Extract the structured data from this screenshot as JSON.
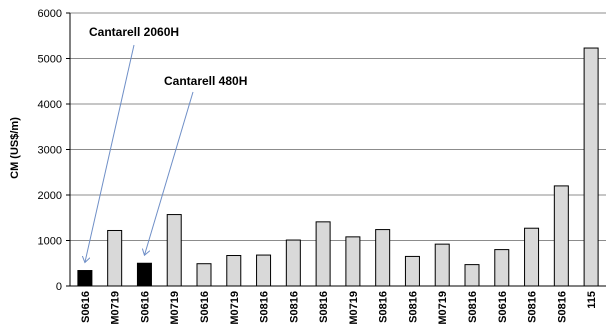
{
  "chart_data": {
    "type": "bar",
    "title": "",
    "xlabel": "",
    "ylabel": "CM (US$/m)",
    "ylim": [
      0,
      6000
    ],
    "yticks": [
      0,
      1000,
      2000,
      3000,
      4000,
      5000,
      6000
    ],
    "grid": true,
    "categories": [
      "S0616",
      "M0719",
      "S0616",
      "M0719",
      "S0616",
      "M0719",
      "S0816",
      "S0816",
      "S0816",
      "M0719",
      "S0816",
      "S0816",
      "M0719",
      "S0816",
      "S0616",
      "S0816",
      "S0816",
      "115"
    ],
    "values": [
      340,
      1220,
      500,
      1570,
      490,
      670,
      680,
      1010,
      1410,
      1080,
      1240,
      650,
      920,
      470,
      800,
      1270,
      2200,
      5230
    ],
    "bar_colors": [
      "#000000",
      "#d9d9d9",
      "#000000",
      "#d9d9d9",
      "#d9d9d9",
      "#d9d9d9",
      "#d9d9d9",
      "#d9d9d9",
      "#d9d9d9",
      "#d9d9d9",
      "#d9d9d9",
      "#d9d9d9",
      "#d9d9d9",
      "#d9d9d9",
      "#d9d9d9",
      "#d9d9d9",
      "#d9d9d9",
      "#d9d9d9"
    ],
    "annotations": [
      {
        "text": "Cantarell 2060H",
        "target_index": 0
      },
      {
        "text": "Cantarell 480H",
        "target_index": 2
      }
    ],
    "arrow_color": "#6f8fc7"
  }
}
